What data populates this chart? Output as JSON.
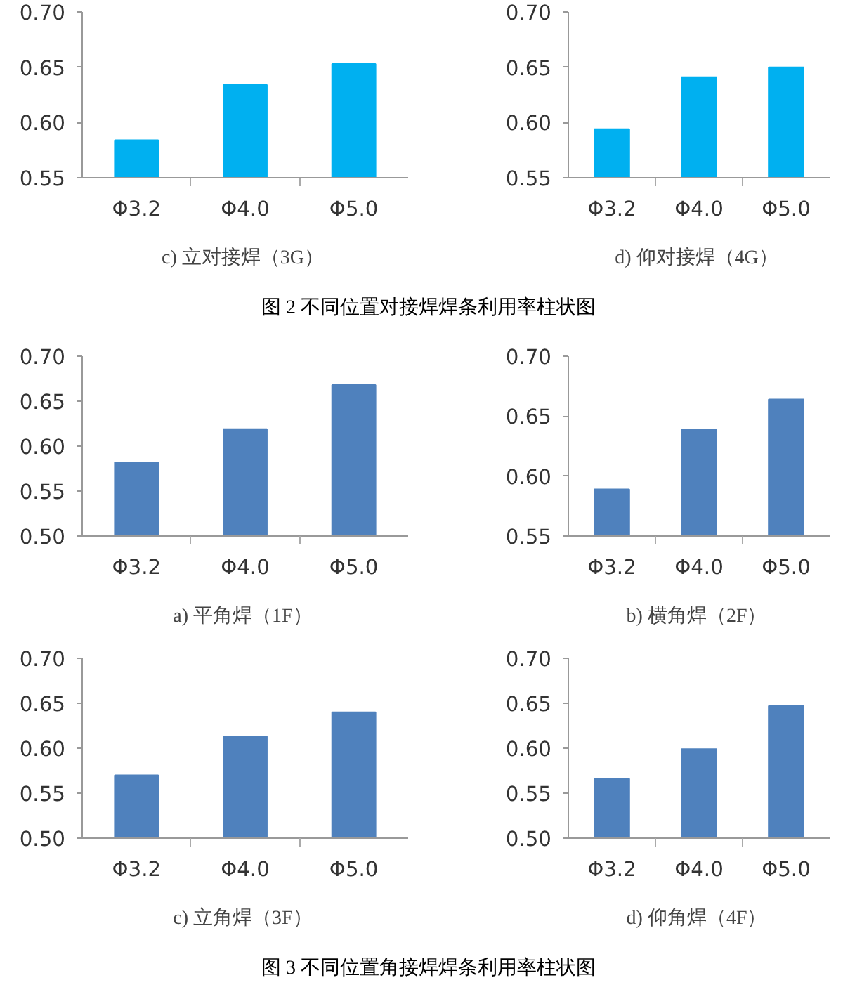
{
  "chart_data": [
    {
      "type": "bar",
      "title": "c)  立对接焊（3G）",
      "categories": [
        "Φ3.2",
        "Φ4.0",
        "Φ5.0"
      ],
      "values": [
        0.584,
        0.634,
        0.653
      ],
      "color": "#00b0f0",
      "ylim": [
        0.55,
        0.7
      ],
      "yticks": [
        {
          "value": 0.55,
          "label": "0.55"
        },
        {
          "value": 0.6,
          "label": "0.60"
        },
        {
          "value": 0.65,
          "label": "0.65"
        },
        {
          "value": 0.7,
          "label": "0.70"
        }
      ],
      "grid": false,
      "legend": false
    },
    {
      "type": "bar",
      "title": "d)  仰对接焊（4G）",
      "categories": [
        "Φ3.2",
        "Φ4.0",
        "Φ5.0"
      ],
      "values": [
        0.594,
        0.641,
        0.65
      ],
      "color": "#00b0f0",
      "ylim": [
        0.55,
        0.7
      ],
      "yticks": [
        {
          "value": 0.55,
          "label": "0.55"
        },
        {
          "value": 0.6,
          "label": "0.60"
        },
        {
          "value": 0.65,
          "label": "0.65"
        },
        {
          "value": 0.7,
          "label": "0.70"
        }
      ],
      "grid": false,
      "legend": false,
      "annotations": [
        "图 2  不同位置对接焊焊条利用率柱状图"
      ]
    },
    {
      "type": "bar",
      "title": "a)  平角焊（1F）",
      "categories": [
        "Φ3.2",
        "Φ4.0",
        "Φ5.0"
      ],
      "values": [
        0.582,
        0.619,
        0.668
      ],
      "color": "#4f81bd",
      "ylim": [
        0.5,
        0.7
      ],
      "yticks": [
        {
          "value": 0.5,
          "label": "0.50"
        },
        {
          "value": 0.55,
          "label": "0.55"
        },
        {
          "value": 0.6,
          "label": "0.60"
        },
        {
          "value": 0.65,
          "label": "0.65"
        },
        {
          "value": 0.7,
          "label": "0.70"
        }
      ],
      "grid": false,
      "legend": false
    },
    {
      "type": "bar",
      "title": "b)  横角焊（2F）",
      "categories": [
        "Φ3.2",
        "Φ4.0",
        "Φ5.0"
      ],
      "values": [
        0.589,
        0.639,
        0.664
      ],
      "color": "#4f81bd",
      "ylim": [
        0.55,
        0.7
      ],
      "yticks": [
        {
          "value": 0.55,
          "label": "0.55"
        },
        {
          "value": 0.6,
          "label": "0.60"
        },
        {
          "value": 0.65,
          "label": "0.65"
        },
        {
          "value": 0.7,
          "label": "0.70"
        }
      ],
      "grid": false,
      "legend": false
    },
    {
      "type": "bar",
      "title": "c)  立角焊（3F）",
      "categories": [
        "Φ3.2",
        "Φ4.0",
        "Φ5.0"
      ],
      "values": [
        0.57,
        0.613,
        0.64
      ],
      "color": "#4f81bd",
      "ylim": [
        0.5,
        0.7
      ],
      "yticks": [
        {
          "value": 0.5,
          "label": "0.50"
        },
        {
          "value": 0.55,
          "label": "0.55"
        },
        {
          "value": 0.6,
          "label": "0.60"
        },
        {
          "value": 0.65,
          "label": "0.65"
        },
        {
          "value": 0.7,
          "label": "0.70"
        }
      ],
      "grid": false,
      "legend": false
    },
    {
      "type": "bar",
      "title": "d)  仰角焊（4F）",
      "categories": [
        "Φ3.2",
        "Φ4.0",
        "Φ5.0"
      ],
      "values": [
        0.566,
        0.599,
        0.647
      ],
      "color": "#4f81bd",
      "ylim": [
        0.5,
        0.7
      ],
      "yticks": [
        {
          "value": 0.5,
          "label": "0.50"
        },
        {
          "value": 0.55,
          "label": "0.55"
        },
        {
          "value": 0.6,
          "label": "0.60"
        },
        {
          "value": 0.65,
          "label": "0.65"
        },
        {
          "value": 0.7,
          "label": "0.70"
        }
      ],
      "grid": false,
      "legend": false,
      "annotations": [
        "图 3  不同位置角接焊焊条利用率柱状图"
      ]
    }
  ]
}
